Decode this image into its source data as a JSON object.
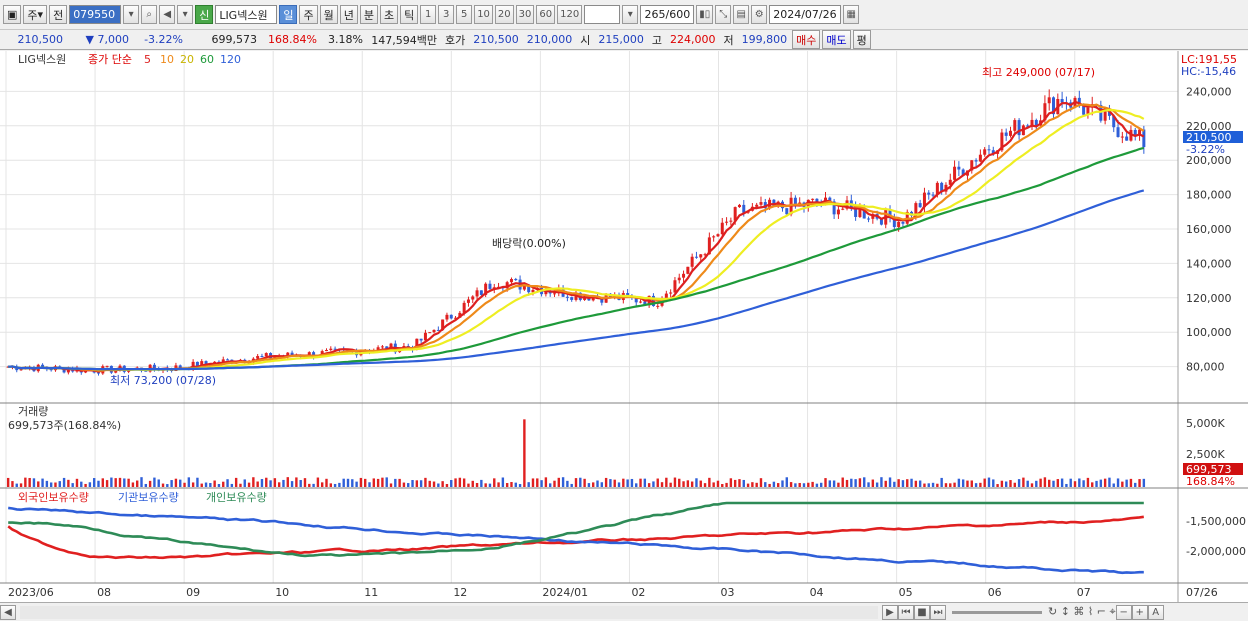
{
  "toolbar": {
    "period_jong": "주",
    "jeon": "전",
    "code": "079550",
    "credit_badge": "신",
    "stock_name": "LIG넥스원",
    "periods": [
      "일",
      "주",
      "월",
      "년",
      "분",
      "초",
      "틱"
    ],
    "intervals": [
      "1",
      "3",
      "5",
      "10",
      "20",
      "30",
      "60",
      "120"
    ],
    "count": "265",
    "count_max": "/600",
    "date": "2024/07/26"
  },
  "quote": {
    "price": "210,500",
    "change": "▼   7,000",
    "change_pct": "-3.22%",
    "volume": "699,573",
    "volume_pct": "168.84%",
    "turnover_rate": "3.18%",
    "amount": "147,594백만",
    "hoga_label": "호가",
    "ask": "210,500",
    "bid": "210,000",
    "open_label": "시",
    "open": "215,000",
    "high_label": "고",
    "high": "224,000",
    "low_label": "저",
    "low": "199,800",
    "buy_btn": "매수",
    "sell_btn": "매도",
    "extra_btn": "평"
  },
  "price_panel": {
    "legend_name": "LIG넥스원",
    "legend_type": "종가 단순",
    "ma_periods": [
      "5",
      "10",
      "20",
      "60",
      "120"
    ],
    "ma_colors": [
      "#dd1f1f",
      "#ee8a1a",
      "#eeee22",
      "#1e9a3a",
      "#2f5fd8"
    ],
    "lc": "LC:191,55",
    "hc": "HC:-15,46",
    "y_ticks": [
      "240,000",
      "220,000",
      "200,000",
      "180,000",
      "160,000",
      "140,000",
      "120,000",
      "100,000",
      "80,000"
    ],
    "last_price": "210,500",
    "last_pct": "-3.22%",
    "high_note": "최고 249,000 (07/17)",
    "low_note": "최저 73,200 (07/28)",
    "dividend_note": "배당락(0.00%)"
  },
  "volume_panel": {
    "title": "거래량",
    "value": "699,573주(168.84%)",
    "y_ticks": [
      "5,000K",
      "2,500K"
    ],
    "last_value": "699,573",
    "last_pct": "168.84%"
  },
  "holding_panel": {
    "series": [
      {
        "name": "외국인보유수량",
        "color": "#e02020"
      },
      {
        "name": "기관보유수량",
        "color": "#2f5fd8"
      },
      {
        "name": "개인보유수량",
        "color": "#2e8b57"
      }
    ],
    "y_ticks": [
      "-1,500,000",
      "-2,000,000"
    ]
  },
  "x_axis": {
    "labels": [
      "2023/06",
      "08",
      "09",
      "10",
      "11",
      "12",
      "2024/01",
      "02",
      "03",
      "04",
      "05",
      "06",
      "07"
    ],
    "current": "07/26"
  },
  "chart_data": {
    "type": "candlestick",
    "x_start": "2023/06",
    "x_end": "2024/07/26",
    "ylim": [
      60000,
      260000
    ],
    "ma_periods": [
      5,
      10,
      20,
      60,
      120
    ],
    "series": [
      {
        "name": "종가",
        "values": [
          {
            "date": "2023/06",
            "close": 80000
          },
          {
            "date": "2023/07",
            "close": 78000
          },
          {
            "date": "2023/08",
            "close": 79000
          },
          {
            "date": "2023/09",
            "close": 85000
          },
          {
            "date": "2023/10",
            "close": 88000
          },
          {
            "date": "2023/11",
            "close": 92000
          },
          {
            "date": "2023/12",
            "close": 130000
          },
          {
            "date": "2024/01",
            "close": 122000
          },
          {
            "date": "2024/02",
            "close": 118000
          },
          {
            "date": "2024/03",
            "close": 170000
          },
          {
            "date": "2024/04",
            "close": 175000
          },
          {
            "date": "2024/05",
            "close": 165000
          },
          {
            "date": "2024/06",
            "close": 205000
          },
          {
            "date": "2024/07/17",
            "close": 237000
          },
          {
            "date": "2024/07/26",
            "close": 210500
          }
        ]
      },
      {
        "name": "거래량",
        "values": [
          {
            "date": "2023/12",
            "volume": 5800000
          },
          {
            "date": "2024/07/26",
            "volume": 699573
          }
        ]
      }
    ]
  }
}
